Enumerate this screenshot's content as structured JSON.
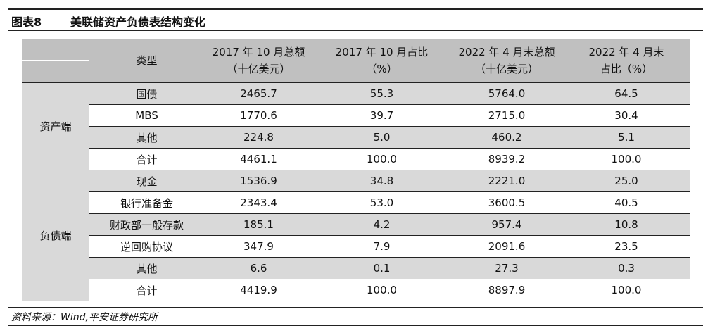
{
  "figure": {
    "number": "图表8",
    "title": "美联储资产负债表结构变化"
  },
  "table": {
    "headers": [
      "类型",
      "2017 年 10 月总额（十亿美元）",
      "2017 年 10 月占比（%）",
      "2022 年 4 月末总额（十亿美元）",
      "2022 年 4 月末占比（%）"
    ],
    "header_lines": [
      [
        "类型"
      ],
      [
        "2017 年 10 月总额",
        "（十亿美元）"
      ],
      [
        "2017 年 10 月占比",
        "（%）"
      ],
      [
        "2022 年 4 月末总额",
        "（十亿美元）"
      ],
      [
        "2022 年 4 月末占",
        "比（%）"
      ]
    ],
    "groups": [
      {
        "name": "资产端",
        "rows": [
          [
            "国债",
            "2465.7",
            "55.3",
            "5764.0",
            "64.5"
          ],
          [
            "MBS",
            "1770.6",
            "39.7",
            "2715.0",
            "30.4"
          ],
          [
            "其他",
            "224.8",
            "5.0",
            "460.2",
            "5.1"
          ],
          [
            "合计",
            "4461.1",
            "100.0",
            "8939.2",
            "100.0"
          ]
        ]
      },
      {
        "name": "负债端",
        "rows": [
          [
            "现金",
            "1536.9",
            "34.8",
            "2221.0",
            "25.0"
          ],
          [
            "银行准备金",
            "2343.4",
            "53.0",
            "3600.5",
            "40.5"
          ],
          [
            "财政部一般存款",
            "185.1",
            "4.2",
            "957.4",
            "10.8"
          ],
          [
            "逆回购协议",
            "347.9",
            "7.9",
            "2091.6",
            "23.5"
          ],
          [
            "其他",
            "6.6",
            "0.1",
            "27.3",
            "0.3"
          ],
          [
            "合计",
            "4419.9",
            "100.0",
            "8897.9",
            "100.0"
          ]
        ]
      }
    ]
  },
  "source": "资料来源：Wind,平安证券研究所",
  "colors": {
    "header_bg": "#c0c0c0",
    "shade_bg": "#d9d9d9"
  }
}
